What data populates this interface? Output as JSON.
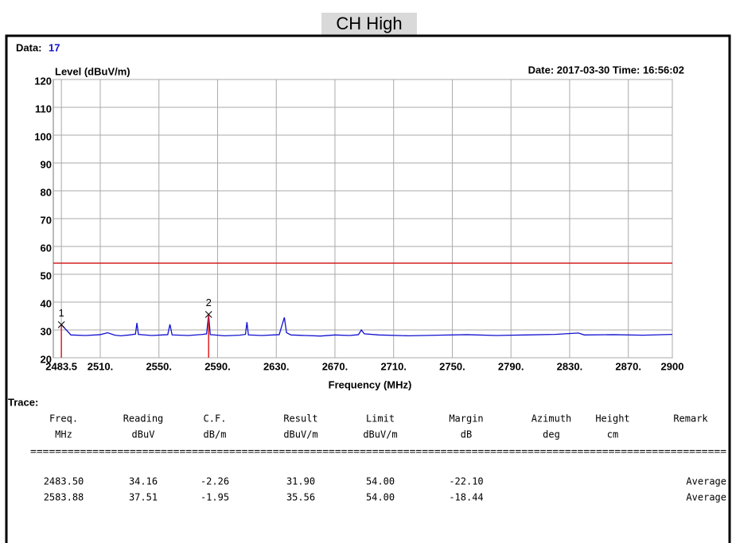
{
  "header": {
    "subtitle": "CH High",
    "data_label": "Data:",
    "data_value": "17",
    "timestamp": "Date: 2017-03-30 Time: 16:56:02"
  },
  "chart_data": {
    "type": "line",
    "ylabel": "Level (dBuV/m)",
    "xlabel": "Frequency (MHz)",
    "xlim": [
      2478,
      2900
    ],
    "ylim": [
      20,
      120
    ],
    "xticks": [
      2483.5,
      {
        "value": 2510,
        "label": "2510."
      },
      {
        "value": 2550,
        "label": "2550."
      },
      {
        "value": 2590,
        "label": "2590."
      },
      {
        "value": 2630,
        "label": "2630."
      },
      {
        "value": 2670,
        "label": "2670."
      },
      {
        "value": 2710,
        "label": "2710."
      },
      {
        "value": 2750,
        "label": "2750."
      },
      {
        "value": 2790,
        "label": "2790."
      },
      {
        "value": 2830,
        "label": "2830."
      },
      {
        "value": 2870,
        "label": "2870."
      },
      2900
    ],
    "yticks": [
      20,
      30,
      40,
      50,
      60,
      70,
      80,
      90,
      100,
      110,
      120
    ],
    "grid": true,
    "x": [
      2483.5,
      2490,
      2500,
      2510,
      2515,
      2520,
      2524,
      2530,
      2534,
      2535,
      2536,
      2545,
      2556,
      2557.5,
      2559,
      2570,
      2580,
      2582.5,
      2583.88,
      2585,
      2595,
      2605,
      2609,
      2610,
      2611,
      2620,
      2632,
      2635.5,
      2637,
      2640,
      2650,
      2660,
      2670,
      2680,
      2686,
      2688,
      2690,
      2700,
      2720,
      2740,
      2760,
      2780,
      2800,
      2820,
      2836,
      2840,
      2860,
      2880,
      2900
    ],
    "series": [
      {
        "color": "#1010d0",
        "values": [
          31.9,
          28.2,
          28.0,
          28.3,
          29.0,
          28.1,
          27.9,
          28.2,
          28.5,
          32.5,
          28.4,
          28.0,
          28.3,
          32.0,
          28.2,
          28.0,
          28.4,
          28.6,
          35.56,
          28.3,
          27.9,
          28.1,
          28.4,
          32.8,
          28.2,
          28.0,
          28.3,
          34.5,
          29.0,
          28.2,
          28.0,
          27.8,
          28.2,
          28.0,
          28.3,
          30.0,
          28.6,
          28.2,
          27.9,
          28.1,
          28.3,
          28.0,
          28.2,
          28.4,
          28.9,
          28.2,
          28.3,
          28.1,
          28.4
        ]
      }
    ],
    "limit": {
      "value": 54,
      "color": "#d02020"
    },
    "markers": [
      {
        "label": "1",
        "x": 2483.5,
        "value": 31.9,
        "color": "#e02020"
      },
      {
        "label": "2",
        "x": 2583.88,
        "value": 35.56,
        "color": "#e02020"
      }
    ]
  },
  "table": {
    "label": "Trace:",
    "headers": [
      [
        "Freq.",
        "MHz"
      ],
      [
        "Reading",
        "dBuV"
      ],
      [
        "C.F.",
        "dB/m"
      ],
      [
        "Result",
        "dBuV/m"
      ],
      [
        "Limit",
        "dBuV/m"
      ],
      [
        "Margin",
        "dB"
      ],
      [
        "Azimuth",
        "deg"
      ],
      [
        "Height",
        "cm"
      ],
      [
        "Remark"
      ]
    ],
    "separator": "================================================================================================================",
    "rows": [
      {
        "freq": "2483.50",
        "reading": "34.16",
        "cf": "-2.26",
        "result": "31.90",
        "limit": "54.00",
        "margin": "-22.10",
        "remark": "Average"
      },
      {
        "freq": "2583.88",
        "reading": "37.51",
        "cf": "-1.95",
        "result": "35.56",
        "limit": "54.00",
        "margin": "-18.44",
        "remark": "Average"
      }
    ]
  }
}
